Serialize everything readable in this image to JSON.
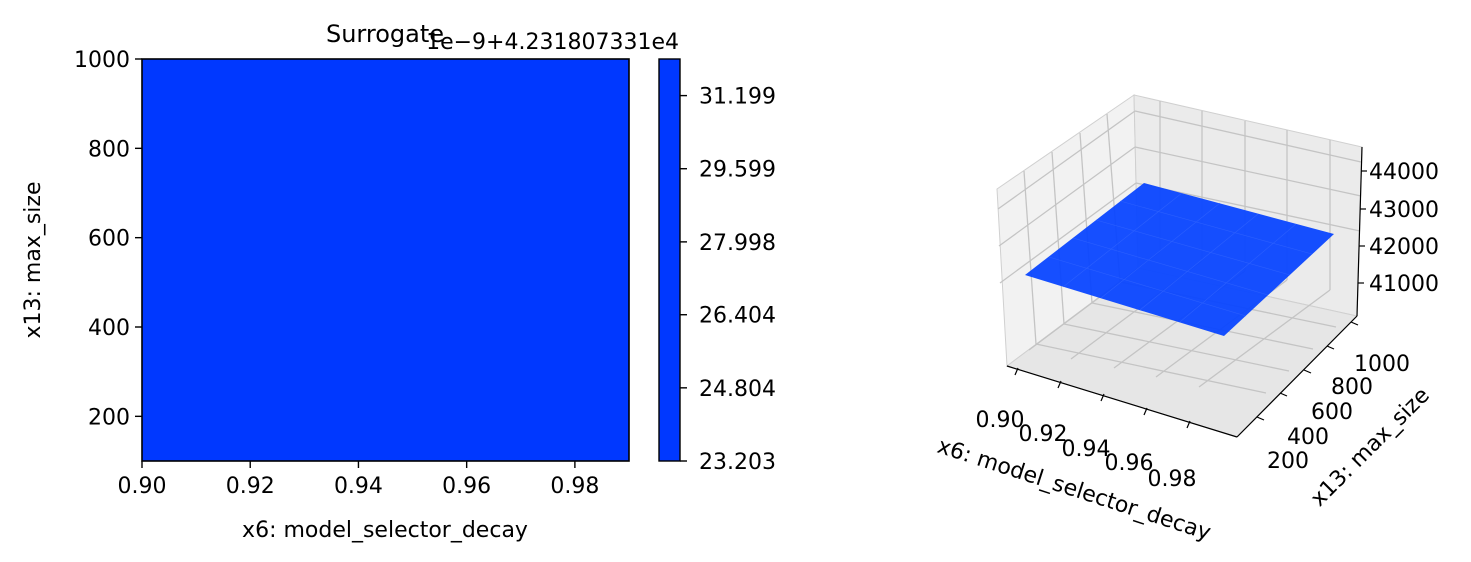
{
  "chart_data": [
    {
      "type": "heatmap",
      "title": "Surrogate",
      "xlabel": "x6: model_selector_decay",
      "ylabel": "x13: max_size",
      "xlim": [
        0.9,
        0.99
      ],
      "ylim": [
        100,
        1000
      ],
      "x_ticks": [
        0.9,
        0.92,
        0.94,
        0.96,
        0.98
      ],
      "x_tick_labels": [
        "0.90",
        "0.92",
        "0.94",
        "0.96",
        "0.98"
      ],
      "y_ticks": [
        200,
        400,
        600,
        800,
        1000
      ],
      "y_tick_labels": [
        "200",
        "400",
        "600",
        "800",
        "1000"
      ],
      "fill_color": "#0038ff",
      "colorbar": {
        "offset_text": "1e−9+4.231807331e4",
        "range": [
          23.203,
          32.0
        ],
        "ticks": [
          23.203,
          24.804,
          26.404,
          27.998,
          29.599,
          31.199
        ],
        "tick_labels": [
          "23.203",
          "24.804",
          "26.404",
          "27.998",
          "29.599",
          "31.199"
        ]
      }
    },
    {
      "type": "surface",
      "xlabel": "x6: model_selector_decay",
      "ylabel": "x13: max_size",
      "x_tick_labels": [
        "0.90",
        "0.92",
        "0.94",
        "0.96",
        "0.98"
      ],
      "y_tick_labels": [
        "200",
        "400",
        "600",
        "800",
        "1000"
      ],
      "z_tick_labels": [
        "41000",
        "42000",
        "43000",
        "44000"
      ],
      "z_value": 42318.07331,
      "surface_color": "#0a46ff"
    }
  ]
}
